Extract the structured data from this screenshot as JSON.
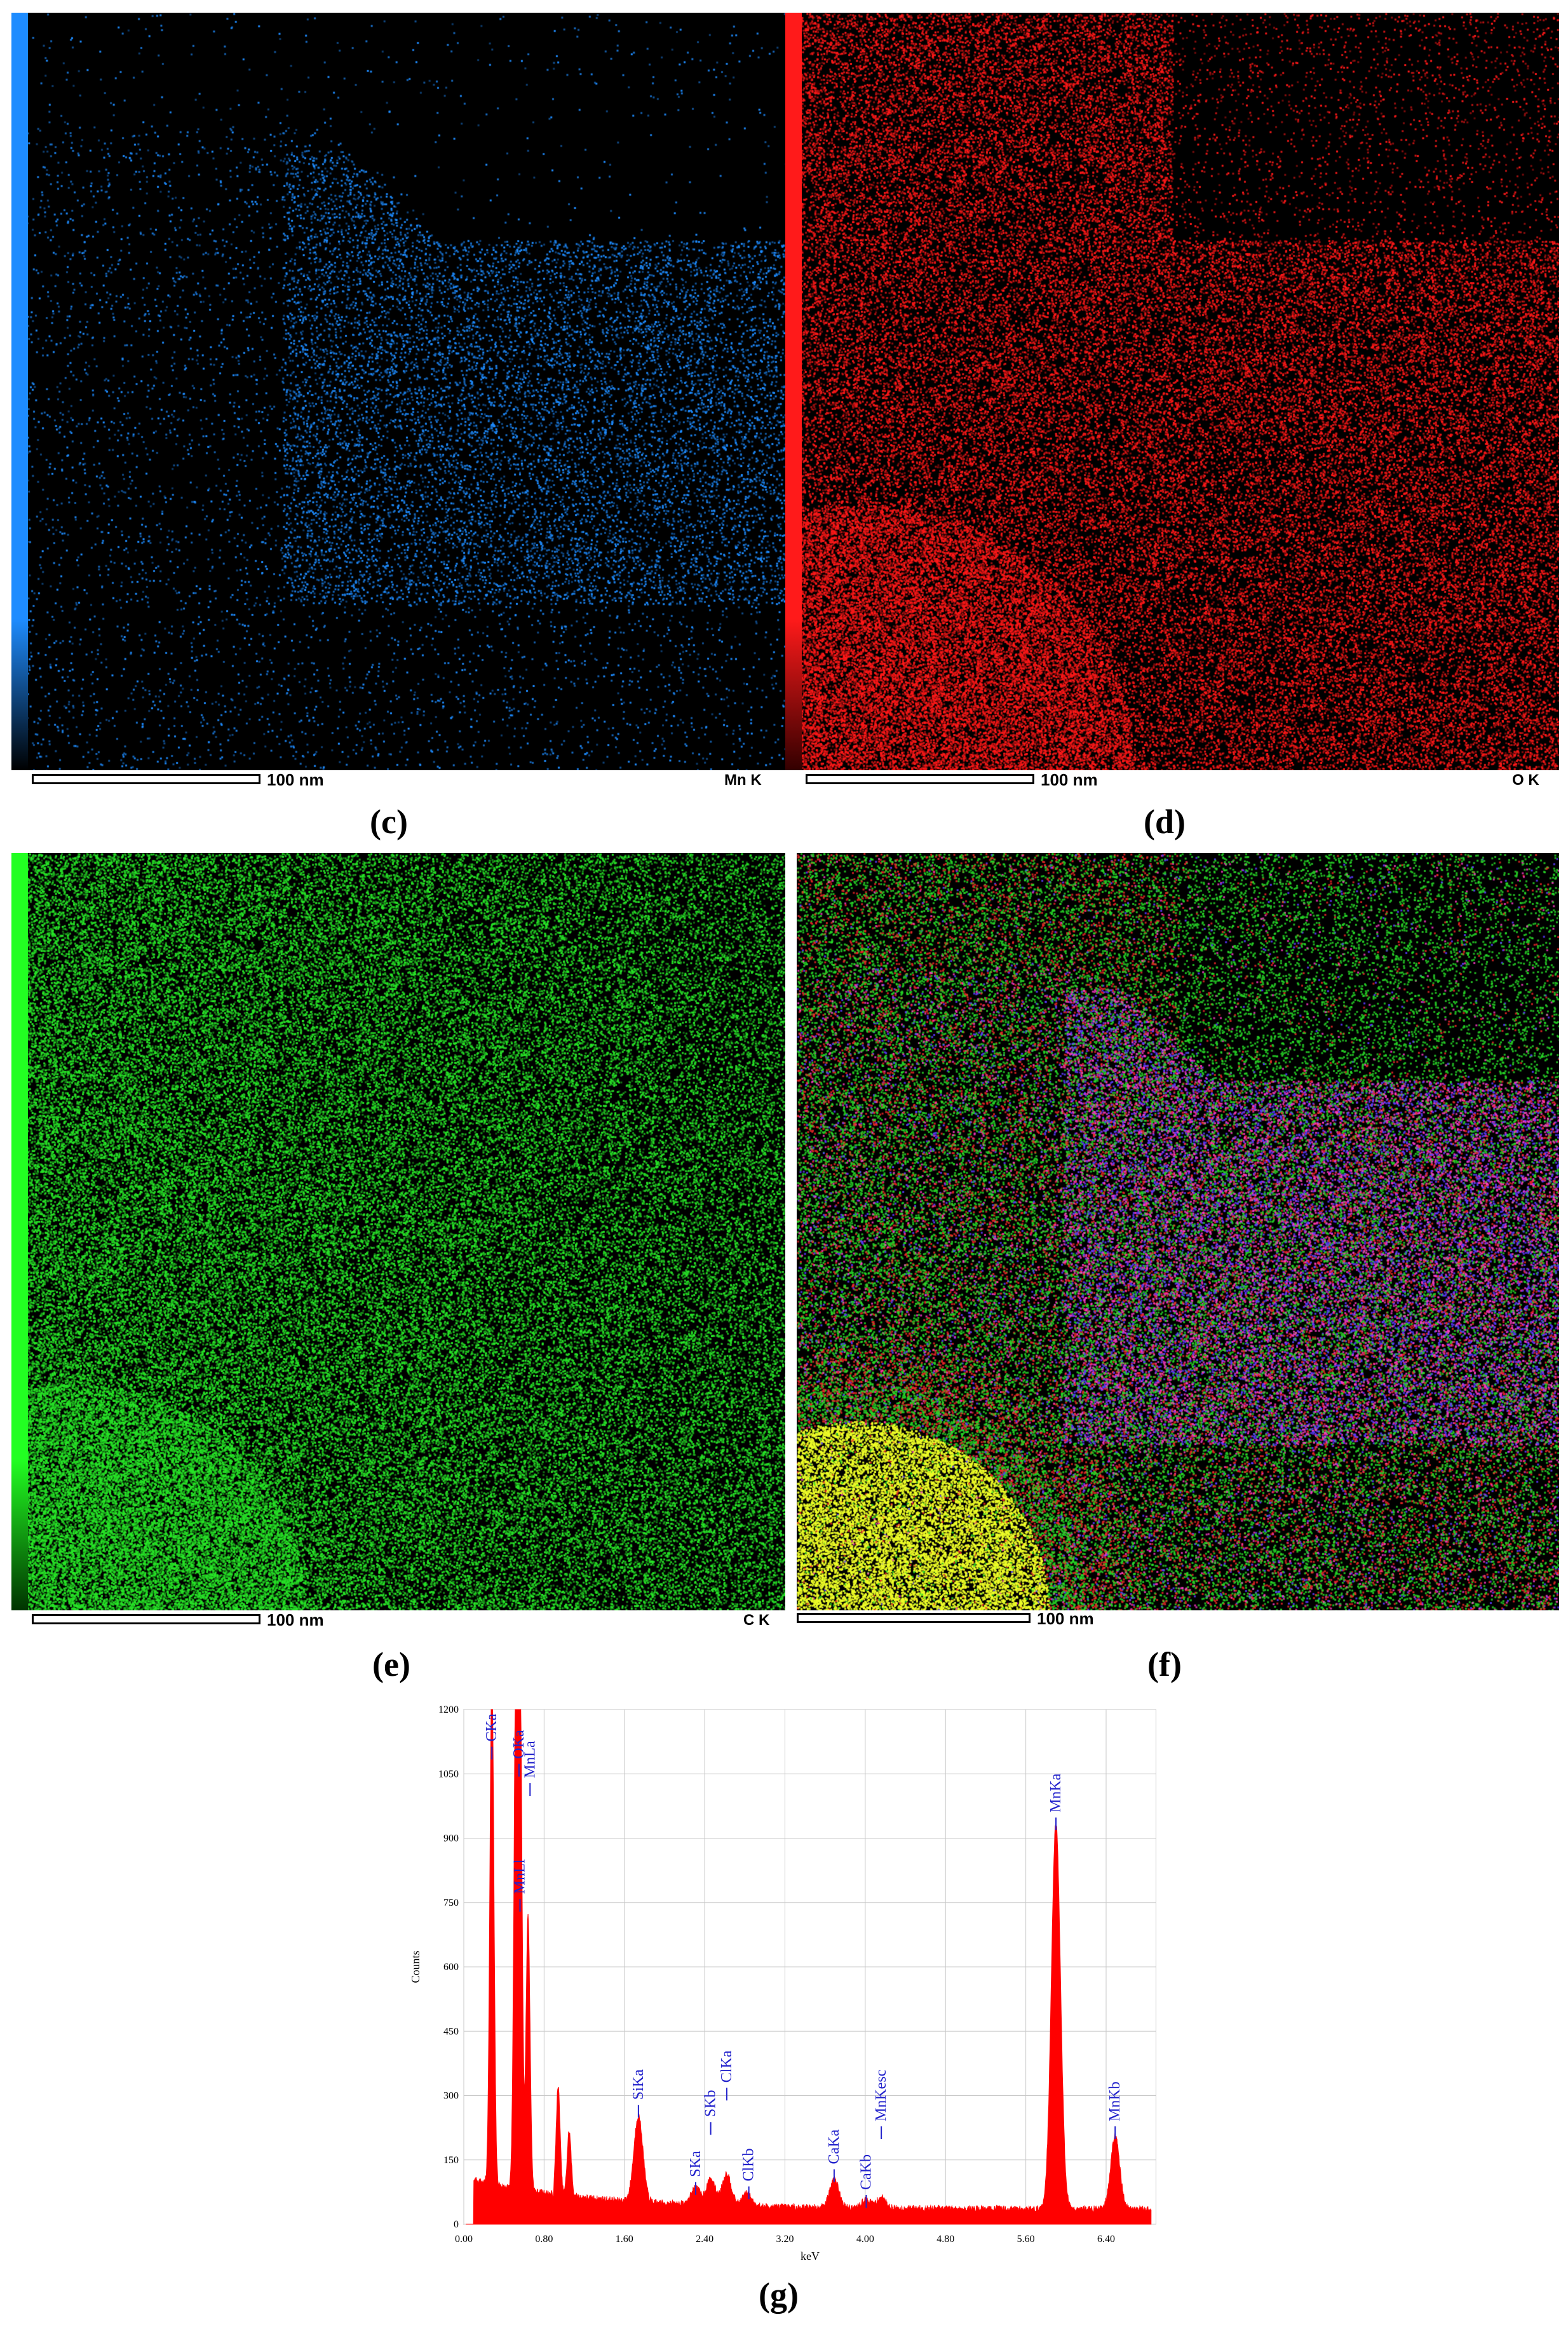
{
  "panels": [
    {
      "id": "c",
      "caption": "(c)",
      "scale_label": "100 nm",
      "element_label": "Mn K",
      "color": "#1e8cff"
    },
    {
      "id": "d",
      "caption": "(d)",
      "scale_label": "100 nm",
      "element_label": "O K",
      "color": "#ff1a1a"
    },
    {
      "id": "e",
      "caption": "(e)",
      "scale_label": "100 nm",
      "element_label": "C K",
      "color": "#22ff22"
    },
    {
      "id": "f",
      "caption": "(f)",
      "scale_label": "100 nm",
      "element_label": "",
      "color": "composite"
    }
  ],
  "spectrum": {
    "caption": "(g)"
  },
  "chart_data": {
    "type": "area",
    "title": "",
    "xlabel": "keV",
    "ylabel": "Counts",
    "xlim": [
      0,
      6.9
    ],
    "ylim": [
      0,
      1200
    ],
    "x_ticks": [
      "0.00",
      "0.80",
      "1.60",
      "2.40",
      "3.20",
      "4.00",
      "4.80",
      "5.60",
      "6.40"
    ],
    "y_ticks": [
      "0",
      "150",
      "300",
      "450",
      "600",
      "750",
      "900",
      "1050",
      "1200"
    ],
    "grid": true,
    "color": "#ff0000",
    "peaks": [
      {
        "label": "CKa",
        "x": 0.28,
        "y": 1200
      },
      {
        "label": "MnLl",
        "x": 0.56,
        "y": 1200
      },
      {
        "label": "OKa",
        "x": 0.52,
        "y": 1200
      },
      {
        "label": "MnLa",
        "x": 0.64,
        "y": 640
      },
      {
        "label": "SiKa",
        "x": 1.74,
        "y": 200
      },
      {
        "label": "SKa",
        "x": 2.31,
        "y": 40
      },
      {
        "label": "SKb",
        "x": 2.46,
        "y": 60
      },
      {
        "label": "ClKa",
        "x": 2.62,
        "y": 75
      },
      {
        "label": "ClKb",
        "x": 2.82,
        "y": 30
      },
      {
        "label": "CaKa",
        "x": 3.69,
        "y": 70
      },
      {
        "label": "CaKb",
        "x": 4.01,
        "y": 20
      },
      {
        "label": "MnKesc",
        "x": 4.16,
        "y": 25
      },
      {
        "label": "MnKa",
        "x": 5.9,
        "y": 900
      },
      {
        "label": "MnKb",
        "x": 6.49,
        "y": 170
      }
    ]
  }
}
